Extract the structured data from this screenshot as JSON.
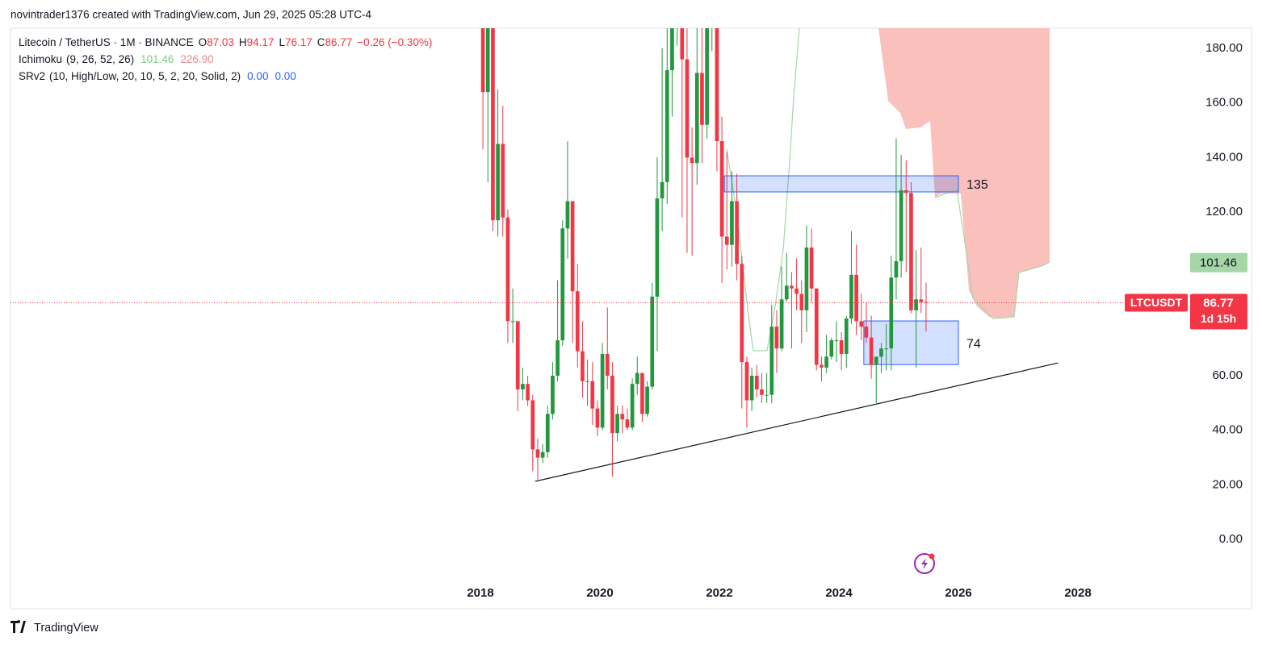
{
  "watermark": "novintrader1376 created with TradingView.com, Jun 29, 2025 05:28 UTC-4",
  "footer": {
    "brand": "TradingView"
  },
  "chart_data": {
    "type": "candlestick",
    "title": "Litecoin / TetherUS · 1M · BINANCE",
    "ohlc_letters": [
      "O",
      "H",
      "L",
      "C"
    ],
    "change_label": "−0.26 (−0.30%)",
    "up_color": "#22973d",
    "down_color": "#f23645",
    "x": [
      "2018-01",
      "2018-02",
      "2018-03",
      "2018-04",
      "2018-05",
      "2018-06",
      "2018-07",
      "2018-08",
      "2018-09",
      "2018-10",
      "2018-11",
      "2018-12",
      "2019-01",
      "2019-02",
      "2019-03",
      "2019-04",
      "2019-05",
      "2019-06",
      "2019-07",
      "2019-08",
      "2019-09",
      "2019-10",
      "2019-11",
      "2019-12",
      "2020-01",
      "2020-02",
      "2020-03",
      "2020-04",
      "2020-05",
      "2020-06",
      "2020-07",
      "2020-08",
      "2020-09",
      "2020-10",
      "2020-11",
      "2020-12",
      "2021-01",
      "2021-02",
      "2021-03",
      "2021-04",
      "2021-05",
      "2021-06",
      "2021-07",
      "2021-08",
      "2021-09",
      "2021-10",
      "2021-11",
      "2021-12",
      "2022-01",
      "2022-02",
      "2022-03",
      "2022-04",
      "2022-05",
      "2022-06",
      "2022-07",
      "2022-08",
      "2022-09",
      "2022-10",
      "2022-11",
      "2022-12",
      "2023-01",
      "2023-02",
      "2023-03",
      "2023-04",
      "2023-05",
      "2023-06",
      "2023-07",
      "2023-08",
      "2023-09",
      "2023-10",
      "2023-11",
      "2023-12",
      "2024-01",
      "2024-02",
      "2024-03",
      "2024-04",
      "2024-05",
      "2024-06",
      "2024-07",
      "2024-08",
      "2024-09",
      "2024-10",
      "2024-11",
      "2024-12",
      "2025-01",
      "2025-02",
      "2025-03",
      "2025-04",
      "2025-05",
      "2025-06"
    ],
    "open": [
      228,
      164,
      202,
      117,
      145,
      118,
      80,
      80,
      55,
      57,
      51,
      33,
      30,
      32,
      46,
      60,
      73,
      114,
      124,
      91,
      69,
      58,
      58,
      48,
      41,
      68,
      60,
      39,
      46,
      44,
      41,
      57,
      61,
      46,
      56,
      89,
      125,
      131,
      172,
      196,
      272,
      176,
      140,
      138,
      171,
      152,
      190,
      205,
      146,
      111,
      108,
      124,
      101,
      65,
      51,
      60,
      55,
      53,
      53,
      78,
      70,
      88,
      93,
      92,
      90,
      84,
      107,
      92,
      64,
      63,
      67,
      73,
      73,
      68,
      81,
      97,
      80,
      78,
      74,
      64,
      67,
      70,
      70,
      96,
      102,
      128,
      127,
      84,
      88,
      87.03
    ],
    "high": [
      245,
      235,
      210,
      165,
      159,
      121,
      92,
      80,
      63,
      60,
      53,
      37,
      35,
      49,
      65,
      95,
      117,
      146,
      124,
      101,
      80,
      66,
      65,
      51,
      72,
      85,
      65,
      49,
      49,
      48,
      59,
      67,
      61,
      58,
      94,
      140,
      180,
      247,
      222,
      295,
      412,
      193,
      151,
      191,
      227,
      210,
      296,
      220,
      155,
      142,
      135,
      134,
      104,
      67,
      63,
      64,
      61,
      61,
      86,
      84,
      100,
      105,
      98,
      103,
      95,
      115,
      114,
      92,
      67,
      75,
      74,
      80,
      76,
      82,
      113,
      108,
      90,
      87,
      82,
      66,
      72,
      79,
      104,
      147,
      141,
      139,
      131,
      106,
      107,
      94.17
    ],
    "low": [
      143,
      131,
      113,
      111,
      111,
      72,
      72,
      47,
      51,
      49,
      25,
      22,
      28,
      30,
      44,
      58,
      71,
      103,
      72,
      63,
      52,
      49,
      42,
      38,
      40,
      55,
      23,
      36,
      39,
      40,
      40,
      53,
      43,
      45,
      55,
      69,
      113,
      123,
      155,
      181,
      118,
      105,
      104,
      130,
      138,
      147,
      179,
      135,
      94,
      99,
      100,
      95,
      48,
      41,
      47,
      52,
      50,
      50,
      50,
      61,
      69,
      87,
      70,
      84,
      72,
      76,
      87,
      62,
      58,
      61,
      66,
      65,
      62,
      63,
      79,
      75,
      73,
      72,
      59,
      50,
      61,
      62,
      62,
      88,
      96,
      98,
      83,
      63,
      83,
      76.17
    ],
    "close": [
      164,
      202,
      117,
      145,
      118,
      80,
      80,
      55,
      57,
      51,
      33,
      30,
      32,
      46,
      60,
      73,
      114,
      124,
      91,
      69,
      58,
      58,
      48,
      41,
      68,
      60,
      39,
      46,
      44,
      41,
      57,
      61,
      46,
      56,
      89,
      125,
      131,
      172,
      196,
      272,
      176,
      140,
      138,
      171,
      152,
      190,
      205,
      146,
      111,
      108,
      124,
      101,
      65,
      51,
      60,
      55,
      53,
      53,
      78,
      70,
      88,
      93,
      92,
      90,
      84,
      107,
      92,
      64,
      63,
      67,
      73,
      73,
      68,
      81,
      97,
      80,
      78,
      74,
      64,
      67,
      70,
      70,
      96,
      102,
      128,
      127,
      84,
      88,
      87.03,
      86.77
    ],
    "ylim": [
      -25.4,
      187.4
    ],
    "yticks": [
      {
        "value": 0,
        "label": "0.00"
      },
      {
        "value": 20,
        "label": "20.00"
      },
      {
        "value": 40,
        "label": "40.00"
      },
      {
        "value": 60,
        "label": "60.00"
      },
      {
        "value": 80,
        "label": "80.00"
      },
      {
        "value": 100,
        "label": "100.00"
      },
      {
        "value": 120,
        "label": "120.00"
      },
      {
        "value": 140,
        "label": "140.00"
      },
      {
        "value": 160,
        "label": "160.00"
      },
      {
        "value": 180,
        "label": "180.00"
      }
    ],
    "xlim": [
      2010.135,
      2029.824
    ],
    "xticks": [
      2018,
      2020,
      2022,
      2024,
      2026,
      2028
    ],
    "price_tag": {
      "label": "LTCUSDT",
      "countdown": "1d 15h"
    },
    "ichimoku": {
      "label": "Ichimoku",
      "params": "(9, 26, 52, 26)",
      "values": [
        101.46,
        226.9
      ],
      "value_labels": [
        "101.46",
        "226.90"
      ],
      "colors": [
        "#7fc98a",
        "#e88a8a"
      ]
    },
    "srv2": {
      "label": "SRv2",
      "params": "(10, High/Low, 20, 10, 5, 2, 20, Solid, 2)",
      "values": [
        0,
        0
      ],
      "value_labels": [
        "0.00",
        "0.00"
      ],
      "color": "#2962ff"
    },
    "zones": [
      {
        "label": "135",
        "low": 127.4,
        "high": 133.3,
        "x": [
          "2022-02",
          "2026-01"
        ]
      },
      {
        "label": "74",
        "low": 64.1,
        "high": 80.1,
        "x": [
          "2024-06",
          "2026-01"
        ]
      }
    ],
    "trendline": {
      "x": [
        "2018-12",
        "2027-09"
      ],
      "y": [
        21.3,
        64.7
      ]
    }
  }
}
